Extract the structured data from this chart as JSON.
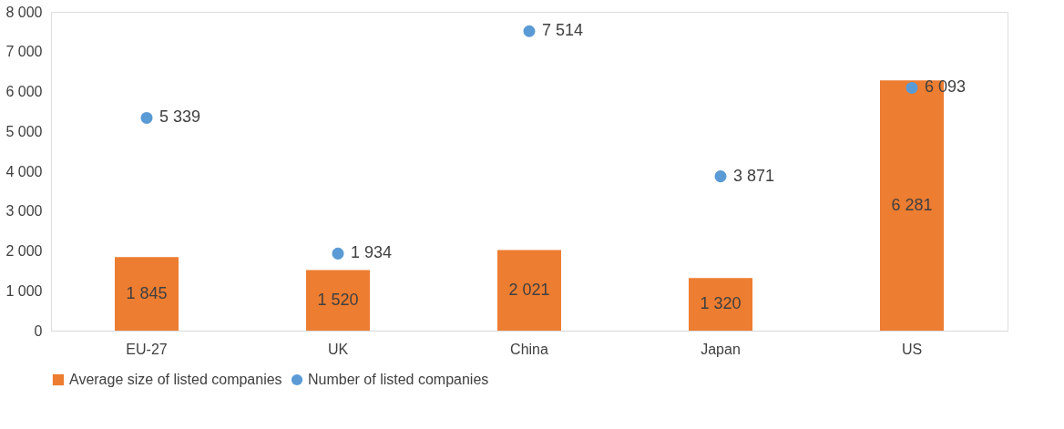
{
  "chart_data": {
    "type": "bar",
    "categories": [
      "EU-27",
      "UK",
      "China",
      "Japan",
      "US"
    ],
    "series": [
      {
        "name": "Average size of listed companies",
        "color": "#ed7d31",
        "values": [
          1845,
          1520,
          2021,
          1320,
          6281
        ]
      },
      {
        "name": "Number of listed companies",
        "type": "scatter",
        "color": "#5b9bd5",
        "values": [
          5339,
          1934,
          7514,
          3871,
          6093
        ]
      }
    ],
    "ylim": [
      0,
      8000
    ],
    "yticks": [
      0,
      1000,
      2000,
      3000,
      4000,
      5000,
      6000,
      7000,
      8000
    ],
    "grid": false,
    "legend": "bottom",
    "data_labels": true,
    "marker": "circle"
  }
}
